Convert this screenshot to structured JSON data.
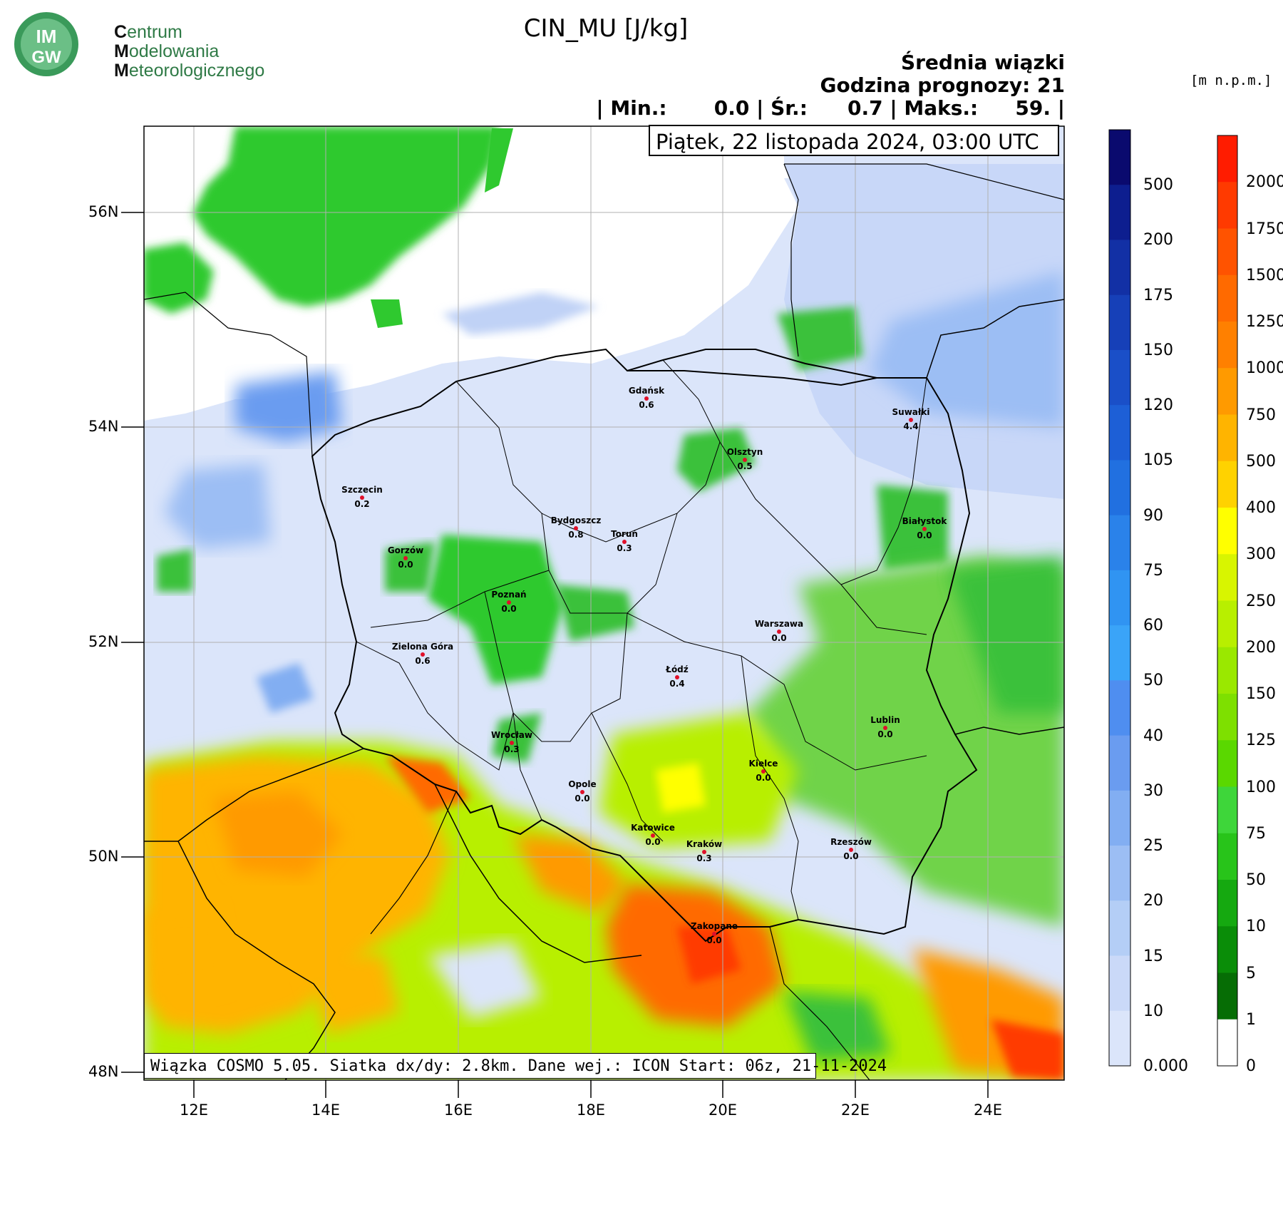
{
  "header": {
    "title": "CIN_MU [J/kg]",
    "subtitle": "Średnia wiązki",
    "forecast_hour": "Godzina prognozy: 21",
    "stats": {
      "min_label": "| Min.:",
      "min_value": "0.0",
      "avg_label": "| Śr.:",
      "avg_value": "0.7",
      "max_label": "| Maks.:",
      "max_value": "59. |"
    },
    "date": "Piątek, 22 listopada 2024, 03:00 UTC",
    "footer": "Wiązka COSMO 5.05. Siatka dx/dy: 2.8km. Dane wej.: ICON Start: 06z, 21-11-2024"
  },
  "logo": {
    "line1_cap": "C",
    "line1": "entrum",
    "line2_cap": "M",
    "line2": "odelowania",
    "line3_cap": "M",
    "line3": "eteorologicznego",
    "badge": "IMGW"
  },
  "axes": {
    "lat_ticks": [
      "56N",
      "54N",
      "52N",
      "50N",
      "48N"
    ],
    "lon_ticks": [
      "12E",
      "14E",
      "16E",
      "18E",
      "20E",
      "22E",
      "24E"
    ]
  },
  "cities": [
    {
      "name": "Gdańsk",
      "value": "0.6"
    },
    {
      "name": "Suwałki",
      "value": "4.4"
    },
    {
      "name": "Olsztyn",
      "value": "0.5"
    },
    {
      "name": "Szczecin",
      "value": "0.2"
    },
    {
      "name": "Bydgoszcz",
      "value": "0.8"
    },
    {
      "name": "Toruń",
      "value": "0.3"
    },
    {
      "name": "Białystok",
      "value": "0.0"
    },
    {
      "name": "Gorzów",
      "value": "0.0"
    },
    {
      "name": "Poznań",
      "value": "0.0"
    },
    {
      "name": "Warszawa",
      "value": "0.0"
    },
    {
      "name": "Zielona Góra",
      "value": "0.6"
    },
    {
      "name": "Łódź",
      "value": "0.4"
    },
    {
      "name": "Lublin",
      "value": "0.0"
    },
    {
      "name": "Wrocław",
      "value": "0.3"
    },
    {
      "name": "Kielce",
      "value": "0.0"
    },
    {
      "name": "Opole",
      "value": "0.0"
    },
    {
      "name": "Katowice",
      "value": "0.0"
    },
    {
      "name": "Kraków",
      "value": "0.3"
    },
    {
      "name": "Rzeszów",
      "value": "0.0"
    },
    {
      "name": "Zakopane",
      "value": "0.0"
    }
  ],
  "legend_cin": {
    "labels": [
      "500",
      "200",
      "175",
      "150",
      "120",
      "105",
      "90",
      "75",
      "60",
      "50",
      "40",
      "30",
      "25",
      "20",
      "15",
      "10",
      "0.000"
    ],
    "colors": [
      "#0a0a6e",
      "#0d1e8f",
      "#1230a5",
      "#1640b8",
      "#1a4fc8",
      "#1d5fd6",
      "#2170e0",
      "#2a82ea",
      "#3094f2",
      "#3aa4f8",
      "#4f8ef0",
      "#6a9cf0",
      "#82aef2",
      "#9cbef4",
      "#b4cef6",
      "#cad9f8",
      "#dbe5fa"
    ]
  },
  "legend_height": {
    "unit": "[m n.p.m.]",
    "labels": [
      "2000",
      "1750",
      "1500",
      "1250",
      "1000",
      "750",
      "500",
      "400",
      "300",
      "250",
      "200",
      "150",
      "125",
      "100",
      "75",
      "50",
      "10",
      "5",
      "1",
      "0"
    ],
    "colors": [
      "#ff1c00",
      "#ff3a00",
      "#ff5300",
      "#ff6a00",
      "#ff8000",
      "#ff9a00",
      "#ffb400",
      "#ffd200",
      "#ffff00",
      "#d8f500",
      "#b8ef00",
      "#9ae800",
      "#7ee000",
      "#5ad800",
      "#3ed63a",
      "#28c41a",
      "#15a910",
      "#0a8d08",
      "#066d05",
      "#ffffff"
    ]
  },
  "colors": {
    "sea_white": "#ffffff",
    "land_cin_low": "#dbe5fa",
    "green": "#3ac13a",
    "orange": "#ff9a00",
    "red": "#ff3a00"
  }
}
